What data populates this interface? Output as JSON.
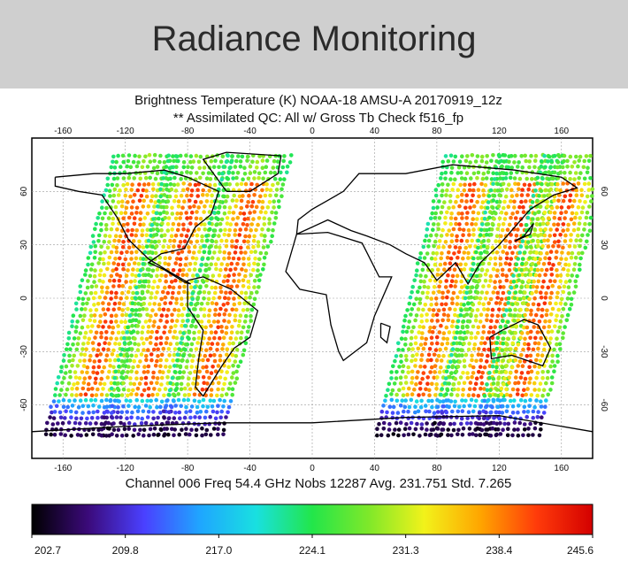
{
  "banner": {
    "title": "Radiance Monitoring"
  },
  "plot": {
    "title_line1": "Brightness Temperature (K)   NOAA-18 AMSU-A 20170919_12z",
    "title_line2": "** Assimilated   QC: All w/ Gross Tb Check   f516_fp",
    "footer": "Channel 006  Freq 54.4 GHz  Nobs 12287  Avg. 231.751  Std. 7.265",
    "lon_ticks": [
      "-160",
      "-120",
      "-80",
      "-40",
      "0",
      "40",
      "80",
      "120",
      "160"
    ],
    "lat_ticks": [
      "60",
      "30",
      "0",
      "-30",
      "-60"
    ],
    "lon_values": [
      -160,
      -120,
      -80,
      -40,
      0,
      40,
      80,
      120,
      160
    ],
    "lat_values": [
      60,
      30,
      0,
      -30,
      -60
    ],
    "colorbar_ticks": [
      "202.7",
      "209.8",
      "217.0",
      "224.1",
      "231.3",
      "238.4",
      "245.6"
    ],
    "colorbar_range": [
      202.7,
      245.6
    ],
    "colormap": [
      "#000000",
      "#3b0a7a",
      "#4a40ff",
      "#1fa6ff",
      "#19e0e0",
      "#22e64a",
      "#7ee82a",
      "#f2f21a",
      "#ffa500",
      "#ff3b0a",
      "#d40000"
    ]
  }
}
